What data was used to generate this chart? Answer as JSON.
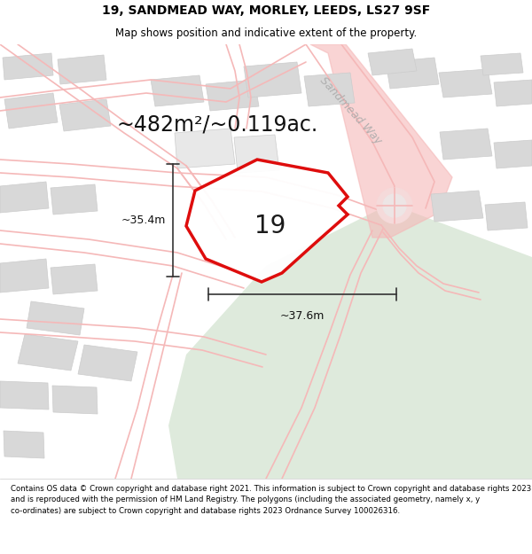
{
  "title": "19, SANDMEAD WAY, MORLEY, LEEDS, LS27 9SF",
  "subtitle": "Map shows position and indicative extent of the property.",
  "area_label": "~482m²/~0.119ac.",
  "number_label": "19",
  "width_label": "~37.6m",
  "height_label": "~35.4m",
  "street_label": "Sandmead Way",
  "footer": "Contains OS data © Crown copyright and database right 2021. This information is subject to Crown copyright and database rights 2023 and is reproduced with the permission of HM Land Registry. The polygons (including the associated geometry, namely x, y co-ordinates) are subject to Crown copyright and database rights 2023 Ordnance Survey 100026316.",
  "bg_map": "#ffffff",
  "road_color": "#f5b8b8",
  "building_color": "#d8d8d8",
  "building_edge": "#cccccc",
  "green_color": "#deeadc",
  "red_poly": "#dd0000",
  "dim_color": "#333333",
  "street_text_color": "#aaaaaa",
  "title_fontsize": 10,
  "subtitle_fontsize": 8.5,
  "area_fontsize": 17,
  "number_fontsize": 20,
  "dim_fontsize": 9,
  "street_fontsize": 9,
  "footer_fontsize": 6.2
}
